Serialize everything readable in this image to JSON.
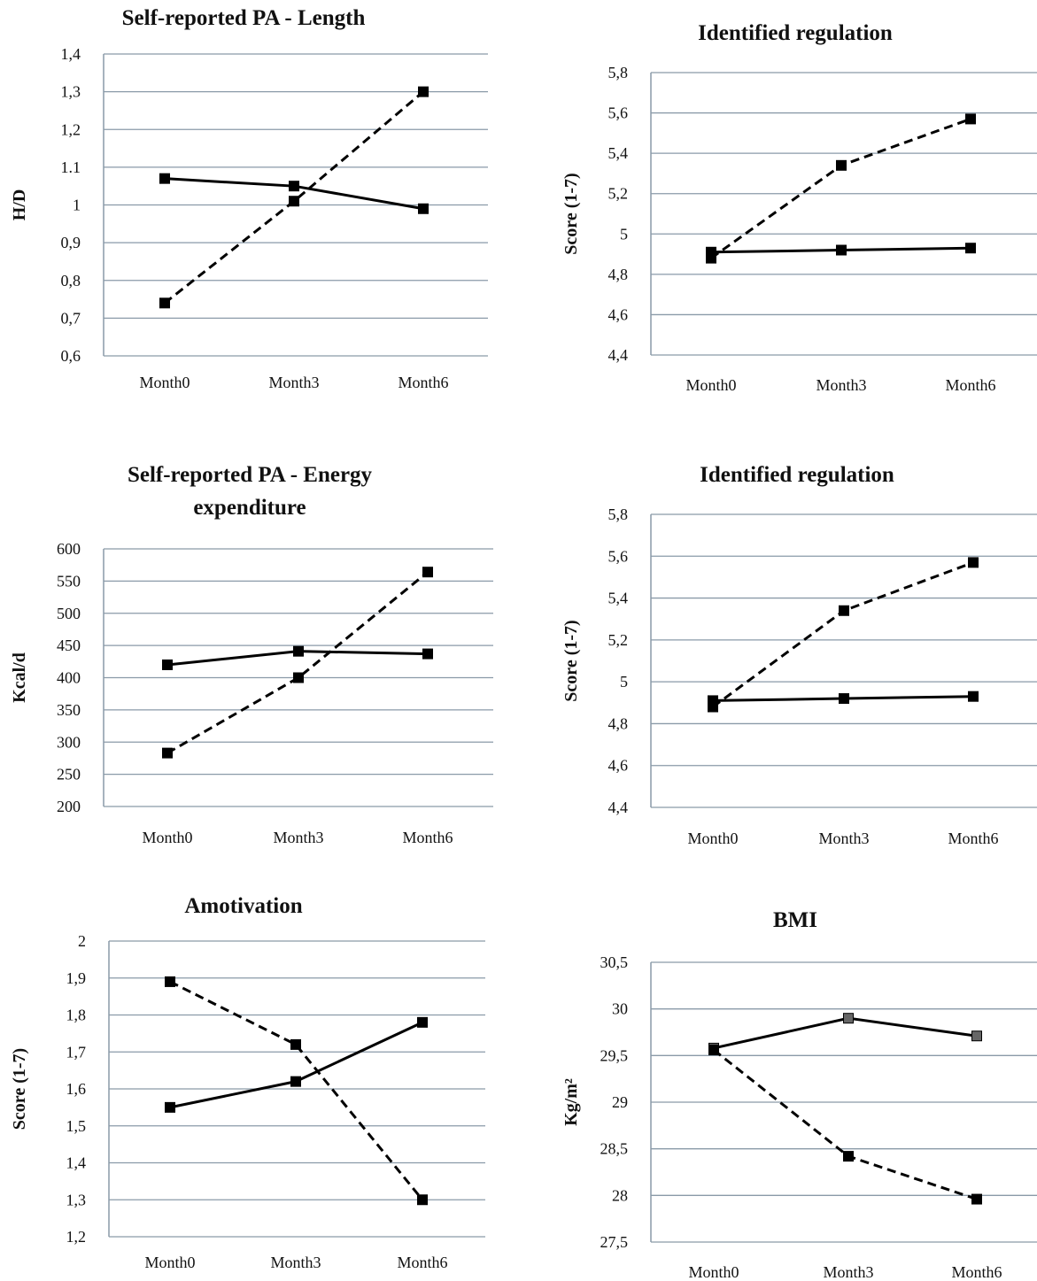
{
  "chart_data": [
    {
      "type": "line",
      "title": [
        "Self-reported PA - Length"
      ],
      "ylabel": "H/D",
      "categories": [
        "Month0",
        "Month3",
        "Month6"
      ],
      "yticks": [
        "0,6",
        "0,7",
        "0,8",
        "0,9",
        "1",
        "1.1",
        "1,2",
        "1,3",
        "1,4"
      ],
      "ylim": [
        0.6,
        1.4
      ],
      "grid": true,
      "series": [
        {
          "style": "solid",
          "values": [
            1.07,
            1.05,
            0.99
          ]
        },
        {
          "style": "dashed",
          "values": [
            0.74,
            1.01,
            1.3
          ]
        }
      ]
    },
    {
      "type": "line",
      "title": [
        "Identified regulation"
      ],
      "ylabel": "Score (1-7)",
      "categories": [
        "Month0",
        "Month3",
        "Month6"
      ],
      "yticks": [
        "4,4",
        "4,6",
        "4,8",
        "5",
        "5,2",
        "5,4",
        "5,6",
        "5,8"
      ],
      "ylim": [
        4.4,
        5.8
      ],
      "grid": true,
      "series": [
        {
          "style": "solid",
          "values": [
            4.91,
            4.92,
            4.93
          ]
        },
        {
          "style": "dashed",
          "values": [
            4.88,
            5.34,
            5.57
          ]
        }
      ]
    },
    {
      "type": "line",
      "title": [
        "Self-reported PA - Energy",
        "expenditure"
      ],
      "ylabel": "Kcal/d",
      "categories": [
        "Month0",
        "Month3",
        "Month6"
      ],
      "yticks": [
        "200",
        "250",
        "300",
        "350",
        "400",
        "450",
        "500",
        "550",
        "600"
      ],
      "ylim": [
        200,
        600
      ],
      "grid": true,
      "series": [
        {
          "style": "solid",
          "values": [
            420,
            441,
            437
          ]
        },
        {
          "style": "dashed",
          "values": [
            283,
            400,
            564
          ]
        }
      ]
    },
    {
      "type": "line",
      "title": [
        "Identified regulation"
      ],
      "ylabel": "Score (1-7)",
      "categories": [
        "Month0",
        "Month3",
        "Month6"
      ],
      "yticks": [
        "4,4",
        "4,6",
        "4,8",
        "5",
        "5,2",
        "5,4",
        "5,6",
        "5,8"
      ],
      "ylim": [
        4.4,
        5.8
      ],
      "grid": true,
      "series": [
        {
          "style": "solid",
          "values": [
            4.91,
            4.92,
            4.93
          ]
        },
        {
          "style": "dashed",
          "values": [
            4.88,
            5.34,
            5.57
          ]
        }
      ]
    },
    {
      "type": "line",
      "title": [
        "Amotivation"
      ],
      "ylabel": "Score (1-7)",
      "categories": [
        "Month0",
        "Month3",
        "Month6"
      ],
      "yticks": [
        "1,2",
        "1,3",
        "1,4",
        "1,5",
        "1,6",
        "1,7",
        "1,8",
        "1,9",
        "2"
      ],
      "ylim": [
        1.2,
        2.0
      ],
      "grid": true,
      "series": [
        {
          "style": "solid",
          "values": [
            1.55,
            1.62,
            1.78
          ]
        },
        {
          "style": "dashed",
          "values": [
            1.89,
            1.72,
            1.3
          ]
        }
      ]
    },
    {
      "type": "line",
      "title": [
        "BMI"
      ],
      "ylabel": "Kg/m²",
      "categories": [
        "Month0",
        "Month3",
        "Month6"
      ],
      "yticks": [
        "27,5",
        "28",
        "28,5",
        "29",
        "29,5",
        "30",
        "30,5"
      ],
      "ylim": [
        27.5,
        30.5
      ],
      "grid": true,
      "series": [
        {
          "style": "solid",
          "marker_color": "#666666",
          "values": [
            29.58,
            29.9,
            29.71
          ]
        },
        {
          "style": "dashed",
          "marker_color": "#000000",
          "values": [
            29.56,
            28.42,
            27.96
          ]
        }
      ]
    }
  ]
}
